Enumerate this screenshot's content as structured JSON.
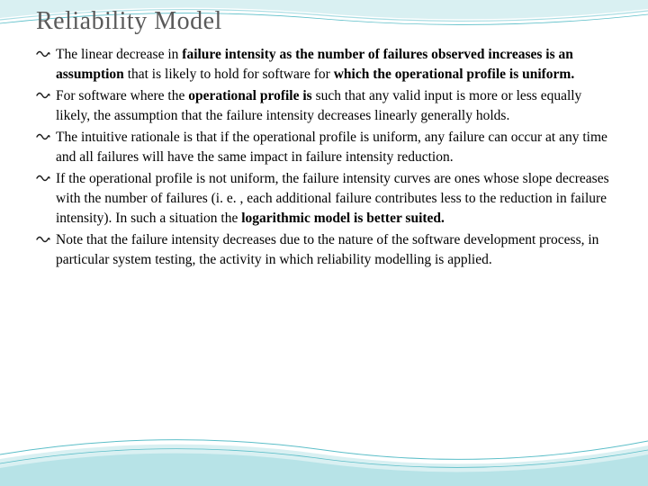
{
  "slide": {
    "title": "Reliability Model",
    "title_color": "#5a5a5a",
    "title_fontsize": 28,
    "body_fontsize": 15.5,
    "body_color": "#000000",
    "bullet_icon_color": "#1a1a1a",
    "background_color": "#ffffff",
    "wave_colors": {
      "light": "#d9f0f2",
      "mid": "#a8dde3",
      "line": "#5bbec8"
    },
    "bullets": [
      {
        "html": "The linear decrease in <b>failure intensity as the number of failures observed increases is an assumption</b> that is likely to hold for software for <b>which the operational profile is uniform.</b>"
      },
      {
        "html": "For software where the <b>operational profile is</b> such that any valid input is more or less equally likely, the assumption that the failure intensity decreases linearly generally holds."
      },
      {
        "html": "The intuitive rationale is that if the operational profile is uniform, any failure can occur at any time and all failures will have the same impact in failure intensity reduction."
      },
      {
        "html": "If the operational profile is not uniform, the failure intensity curves are ones whose slope decreases with the number of failures (i. e. , each additional failure contributes less to the reduction in failure intensity). In such a situation the <b>logarithmic model is better suited.</b>"
      },
      {
        "html": "Note that the failure intensity decreases due to the nature of the software development process, in particular system testing, the activity in which reliability modelling is applied."
      }
    ]
  }
}
